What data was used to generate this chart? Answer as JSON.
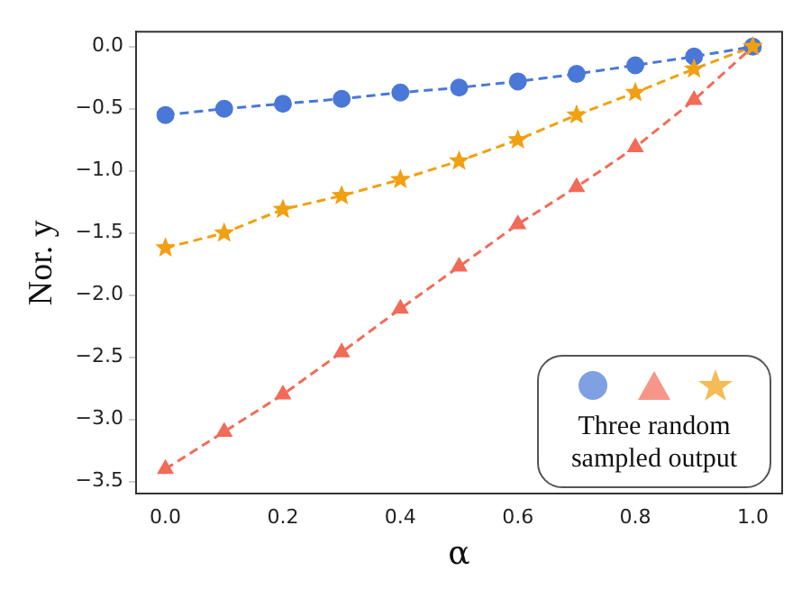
{
  "chart_data": {
    "type": "line",
    "xlabel": "α",
    "ylabel": "Nor. y",
    "annotations": [
      "Three random sampled output"
    ],
    "line_style": "dashed",
    "grid": false,
    "x": [
      0,
      0.1,
      0.2,
      0.3,
      0.4,
      0.5,
      0.6,
      0.7,
      0.8,
      0.9,
      1.0
    ],
    "xlim": [
      -0.05,
      1.05
    ],
    "xticks": [
      {
        "value": 0,
        "label": "0.0"
      },
      {
        "value": 0.2,
        "label": "0.2"
      },
      {
        "value": 0.4,
        "label": "0.4"
      },
      {
        "value": 0.6,
        "label": "0.6"
      },
      {
        "value": 0.8,
        "label": "0.8"
      },
      {
        "value": 1,
        "label": "1.0"
      }
    ],
    "ylim": [
      -3.6,
      0.12
    ],
    "yticks": [
      {
        "value": -3.5,
        "label": "−3.5"
      },
      {
        "value": -3,
        "label": "−3.0"
      },
      {
        "value": -2.5,
        "label": "−2.5"
      },
      {
        "value": -2,
        "label": "−2.0"
      },
      {
        "value": -1.5,
        "label": "−1.5"
      },
      {
        "value": -1,
        "label": "−1.0"
      },
      {
        "value": -0.5,
        "label": "−0.5"
      },
      {
        "value": 0,
        "label": "0.0"
      }
    ],
    "series": [
      {
        "color": "#4a78d8",
        "marker": "circle",
        "values": [
          -0.55,
          -0.5,
          -0.46,
          -0.42,
          -0.37,
          -0.33,
          -0.28,
          -0.22,
          -0.15,
          -0.08,
          0
        ]
      },
      {
        "color": "#f26b58",
        "marker": "triangle",
        "values": [
          -3.4,
          -3.1,
          -2.8,
          -2.46,
          -2.11,
          -1.77,
          -1.43,
          -1.13,
          -0.81,
          -0.43,
          0
        ]
      },
      {
        "color": "#f0a010",
        "marker": "star",
        "values": [
          -1.62,
          -1.5,
          -1.31,
          -1.2,
          -1.07,
          -0.92,
          -0.75,
          -0.55,
          -0.37,
          -0.18,
          0
        ]
      }
    ]
  }
}
